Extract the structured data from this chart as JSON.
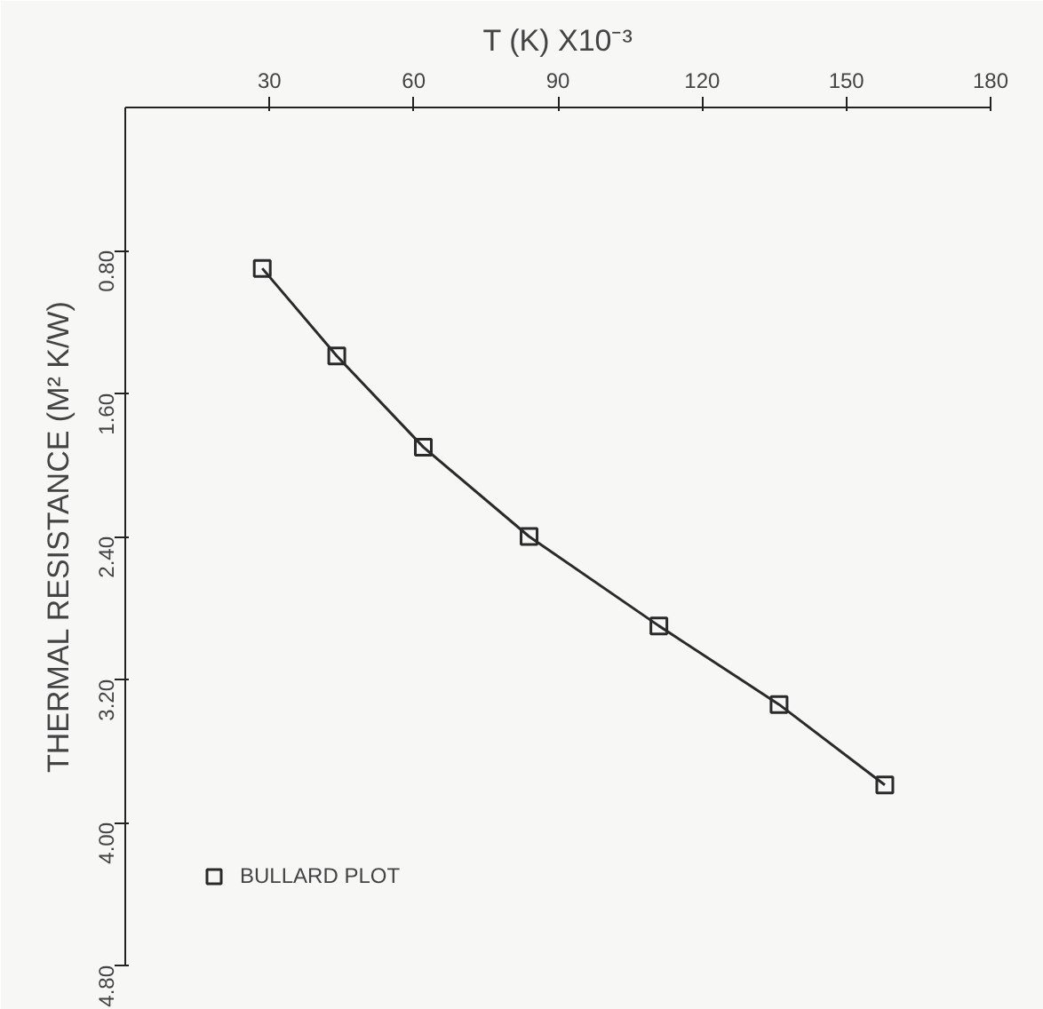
{
  "chart_data": {
    "type": "line",
    "xlabel": "T (K) X10⁻³",
    "ylabel": "THERMAL RESISTANCE (M² K/W)",
    "x": [
      28.5,
      44,
      62,
      84,
      111,
      136,
      158
    ],
    "series": [
      {
        "name": "BULLARD PLOT",
        "color": "#2a2a2a",
        "values": [
          0.9,
          1.39,
          1.9,
          2.4,
          2.9,
          3.34,
          3.79
        ]
      }
    ],
    "xlim": [
      0,
      180
    ],
    "xticks": [
      30,
      60,
      90,
      120,
      150,
      180
    ],
    "ylim": [
      4.8,
      0
    ],
    "yticks": [
      {
        "value": 0.8,
        "label": "0.80"
      },
      {
        "value": 1.6,
        "label": "1.60"
      },
      {
        "value": 2.4,
        "label": "2.40"
      },
      {
        "value": 3.2,
        "label": "3.20"
      },
      {
        "value": 4.0,
        "label": "4.00"
      },
      {
        "value": 4.8,
        "label": "4.80"
      }
    ],
    "marker": "square",
    "line_style": "solid",
    "grid": false,
    "legend": "bottom left"
  }
}
